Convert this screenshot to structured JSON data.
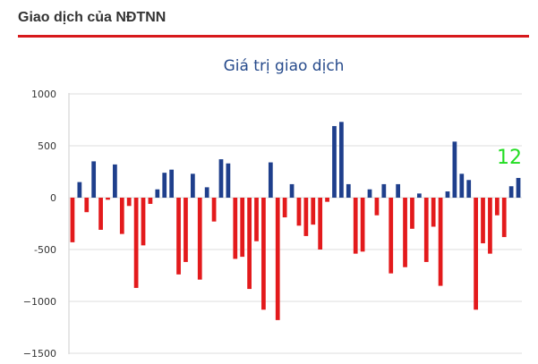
{
  "header": {
    "title": "Giao dịch của NĐTNN",
    "accent_color": "#d7191c"
  },
  "annotation": {
    "text": "12",
    "color": "#22dd22"
  },
  "chart_data": {
    "type": "bar",
    "title": "Giá trị giao dịch",
    "xlabel": "",
    "ylabel": "",
    "ylim": [
      -1500,
      1000
    ],
    "yticks": [
      {
        "value": 1000,
        "label": "1000"
      },
      {
        "value": 500,
        "label": "500"
      },
      {
        "value": 0,
        "label": "0"
      },
      {
        "value": -500,
        "label": "-500"
      },
      {
        "value": -1000,
        "label": "−1000"
      },
      {
        "value": -1500,
        "label": "−1500"
      }
    ],
    "grid": true,
    "legend": "none",
    "colors": {
      "positive": "#1f3f8c",
      "negative": "#e31a1c"
    },
    "values": [
      -430,
      150,
      -140,
      350,
      -310,
      -20,
      320,
      -350,
      -80,
      -870,
      -460,
      -60,
      80,
      240,
      270,
      -740,
      -620,
      230,
      -790,
      100,
      -230,
      370,
      330,
      -590,
      -570,
      -880,
      -420,
      -1080,
      340,
      -1180,
      -190,
      130,
      -270,
      -370,
      -260,
      -500,
      -40,
      690,
      730,
      130,
      -540,
      -520,
      80,
      -170,
      130,
      -730,
      130,
      -670,
      -300,
      40,
      -620,
      -280,
      -850,
      60,
      540,
      230,
      170,
      -1080,
      -440,
      -540,
      -170,
      -380,
      110,
      190
    ]
  }
}
